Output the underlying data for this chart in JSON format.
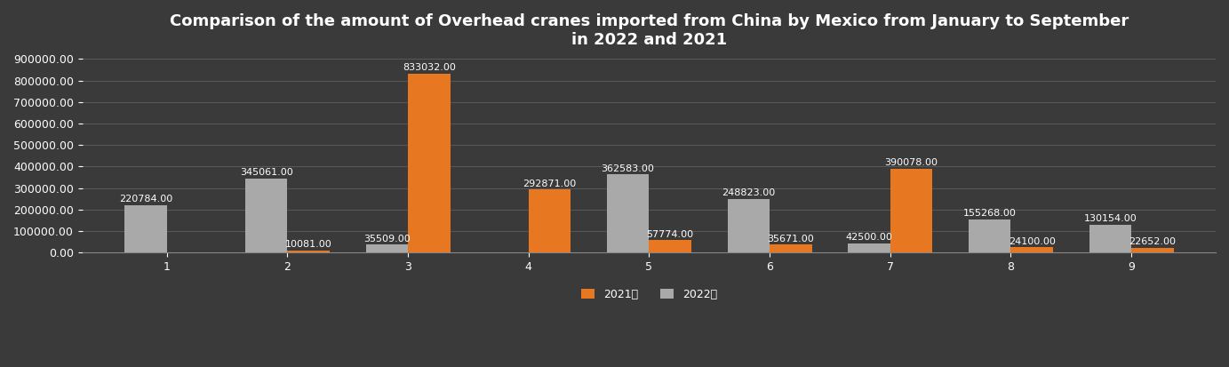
{
  "title": "Comparison of the amount of Overhead cranes imported from China by Mexico from January to September\nin 2022 and 2021",
  "categories": [
    1,
    2,
    3,
    4,
    5,
    6,
    7,
    8,
    9
  ],
  "values_2022": [
    220784.0,
    345061.0,
    35509.0,
    0,
    362583.0,
    248823.0,
    42500.0,
    155268.0,
    130154.0
  ],
  "values_2021": [
    0,
    10081.0,
    833032.0,
    292871.0,
    57774.0,
    35671.0,
    390078.0,
    24100.0,
    22652.0
  ],
  "color_2021": "#E87722",
  "color_2022": "#A9A9A9",
  "background_color": "#3a3a3a",
  "text_color": "#ffffff",
  "legend_labels": [
    "2021年",
    "2022年"
  ],
  "ylim": [
    0,
    900000
  ],
  "yticks": [
    0,
    100000,
    200000,
    300000,
    400000,
    500000,
    600000,
    700000,
    800000,
    900000
  ],
  "bar_width": 0.35,
  "title_fontsize": 13,
  "tick_fontsize": 9,
  "label_fontsize": 8,
  "legend_fontsize": 9
}
